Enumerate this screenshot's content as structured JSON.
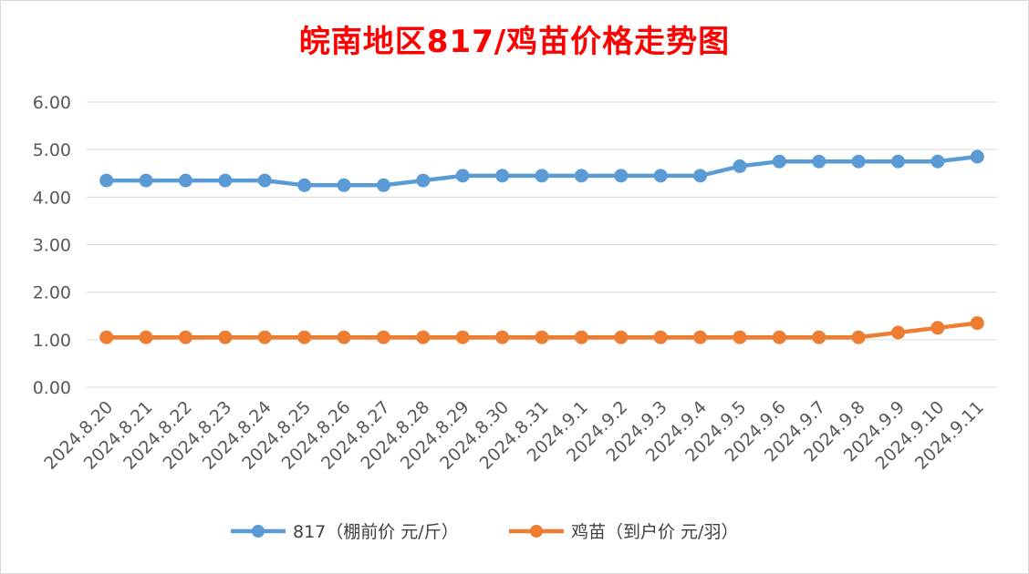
{
  "chart_data": {
    "type": "line",
    "title": "皖南地区817/鸡苗价格走势图",
    "xlabel": "",
    "ylabel": "",
    "ylim": [
      0,
      6
    ],
    "yticks": [
      "0.00",
      "1.00",
      "2.00",
      "3.00",
      "4.00",
      "5.00",
      "6.00"
    ],
    "grid": true,
    "legend_position": "bottom",
    "categories": [
      "2024.8.20",
      "2024.8.21",
      "2024.8.22",
      "2024.8.23",
      "2024.8.24",
      "2024.8.25",
      "2024.8.26",
      "2024.8.27",
      "2024.8.28",
      "2024.8.29",
      "2024.8.30",
      "2024.8.31",
      "2024.9.1",
      "2024.9.2",
      "2024.9.3",
      "2024.9.4",
      "2024.9.5",
      "2024.9.6",
      "2024.9.7",
      "2024.9.8",
      "2024.9.9",
      "2024.9.10",
      "2024.9.11"
    ],
    "series": [
      {
        "name": "817（棚前价 元/斤）",
        "color": "#5b9bd5",
        "values": [
          4.35,
          4.35,
          4.35,
          4.35,
          4.35,
          4.25,
          4.25,
          4.25,
          4.35,
          4.45,
          4.45,
          4.45,
          4.45,
          4.45,
          4.45,
          4.45,
          4.65,
          4.75,
          4.75,
          4.75,
          4.75,
          4.75,
          4.85
        ]
      },
      {
        "name": "鸡苗（到户价 元/羽）",
        "color": "#ed7d31",
        "values": [
          1.05,
          1.05,
          1.05,
          1.05,
          1.05,
          1.05,
          1.05,
          1.05,
          1.05,
          1.05,
          1.05,
          1.05,
          1.05,
          1.05,
          1.05,
          1.05,
          1.05,
          1.05,
          1.05,
          1.05,
          1.15,
          1.25,
          1.35
        ]
      }
    ]
  }
}
